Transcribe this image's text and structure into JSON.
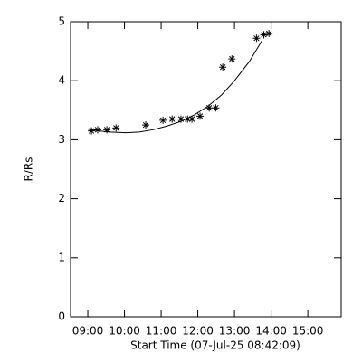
{
  "chart_data": {
    "type": "scatter",
    "x_label": "Start Time (07-Jul-25 08:42:09)",
    "y_label": "R/Rs",
    "series": [
      {
        "type": "scatter",
        "color": "#000000",
        "x": [
          9.1,
          9.27,
          9.52,
          9.77,
          10.58,
          11.05,
          11.3,
          11.54,
          11.72,
          11.84,
          12.06,
          12.31,
          12.49,
          12.68,
          12.93,
          13.6,
          13.8,
          13.94
        ],
        "values": [
          3.15,
          3.17,
          3.17,
          3.2,
          3.25,
          3.33,
          3.35,
          3.35,
          3.35,
          3.35,
          3.4,
          3.54,
          3.54,
          4.23,
          4.37,
          4.72,
          4.78,
          4.8
        ]
      },
      {
        "type": "line",
        "color": "#000000",
        "x": [
          9.0,
          9.3,
          9.6,
          10.04,
          10.4,
          10.78,
          11.15,
          11.54,
          11.9,
          12.28,
          12.65,
          13.0,
          13.4,
          13.75
        ],
        "values": [
          3.18,
          3.15,
          3.13,
          3.12,
          3.13,
          3.17,
          3.23,
          3.31,
          3.42,
          3.57,
          3.76,
          4.0,
          4.32,
          4.68
        ]
      }
    ],
    "xlim": [
      8.53,
      15.91
    ],
    "ylim": [
      0,
      5
    ],
    "xticks": [
      {
        "value": 9,
        "label": "09:00"
      },
      {
        "value": 10,
        "label": "10:00"
      },
      {
        "value": 11,
        "label": "11:00"
      },
      {
        "value": 12,
        "label": "12:00"
      },
      {
        "value": 13,
        "label": "13:00"
      },
      {
        "value": 14,
        "label": "14:00"
      },
      {
        "value": 15,
        "label": "15:00"
      }
    ],
    "yticks": [
      0,
      1,
      2,
      3,
      4,
      5
    ]
  }
}
